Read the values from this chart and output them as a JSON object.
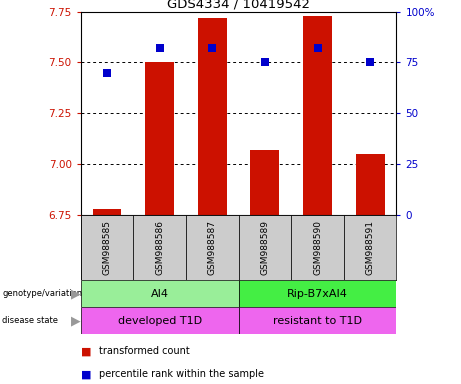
{
  "title": "GDS4334 / 10419542",
  "samples": [
    "GSM988585",
    "GSM988586",
    "GSM988587",
    "GSM988589",
    "GSM988590",
    "GSM988591"
  ],
  "red_values": [
    6.78,
    7.5,
    7.72,
    7.07,
    7.73,
    7.05
  ],
  "blue_values": [
    70,
    82,
    82,
    75,
    82,
    75
  ],
  "ylim_left": [
    6.75,
    7.75
  ],
  "ylim_right": [
    0,
    100
  ],
  "yticks_left": [
    6.75,
    7.0,
    7.25,
    7.5,
    7.75
  ],
  "yticks_right": [
    0,
    25,
    50,
    75,
    100
  ],
  "ytick_labels_right": [
    "0",
    "25",
    "50",
    "75",
    "100%"
  ],
  "bar_color": "#cc1100",
  "dot_color": "#0000cc",
  "bar_bottom": 6.75,
  "genotype_labels": [
    "AI4",
    "Rip-B7xAI4"
  ],
  "genotype_colors": [
    "#99ee99",
    "#44ee44"
  ],
  "disease_labels": [
    "developed T1D",
    "resistant to T1D"
  ],
  "disease_color": "#ee66ee",
  "legend_red": "transformed count",
  "legend_blue": "percentile rank within the sample",
  "left_axis_color": "#cc1100",
  "right_axis_color": "#0000cc",
  "bar_width": 0.55,
  "dot_size": 35,
  "sample_box_color": "#cccccc",
  "label_arrow_color": "#999999"
}
